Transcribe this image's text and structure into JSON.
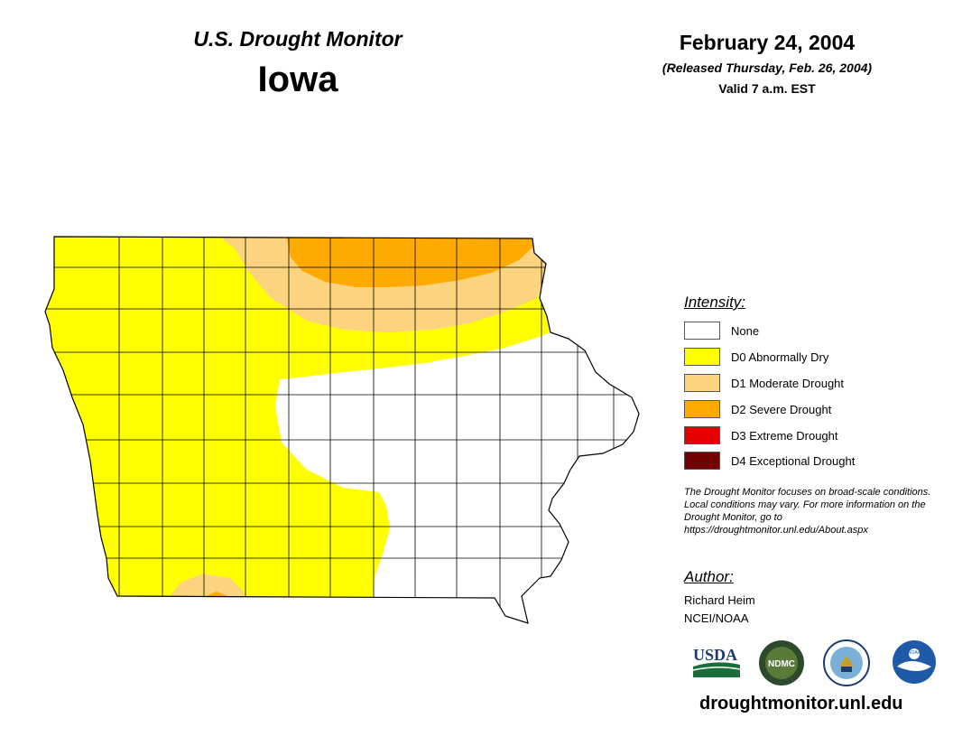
{
  "header": {
    "monitor_title": "U.S. Drought Monitor",
    "state": "Iowa",
    "date": "February 24, 2004",
    "released": "(Released Thursday, Feb. 26, 2004)",
    "valid": "Valid 7 a.m. EST"
  },
  "legend": {
    "title": "Intensity:",
    "items": [
      {
        "label": "None",
        "color": "#ffffff"
      },
      {
        "label": "D0 Abnormally Dry",
        "color": "#ffff00"
      },
      {
        "label": "D1 Moderate Drought",
        "color": "#fcd37f"
      },
      {
        "label": "D2 Severe Drought",
        "color": "#ffaa00"
      },
      {
        "label": "D3 Extreme Drought",
        "color": "#e60000"
      },
      {
        "label": "D4 Exceptional Drought",
        "color": "#730000"
      }
    ]
  },
  "note": "The Drought Monitor focuses on broad-scale conditions. Local conditions may vary. For more information on the Drought Monitor, go to https://droughtmonitor.unl.edu/About.aspx",
  "author": {
    "title": "Author:",
    "name": "Richard Heim",
    "org": "NCEI/NOAA"
  },
  "logos": {
    "usda": "USDA",
    "ndmc": "NDMC",
    "noaa": "NOAA"
  },
  "footer_url": "droughtmonitor.unl.edu"
}
